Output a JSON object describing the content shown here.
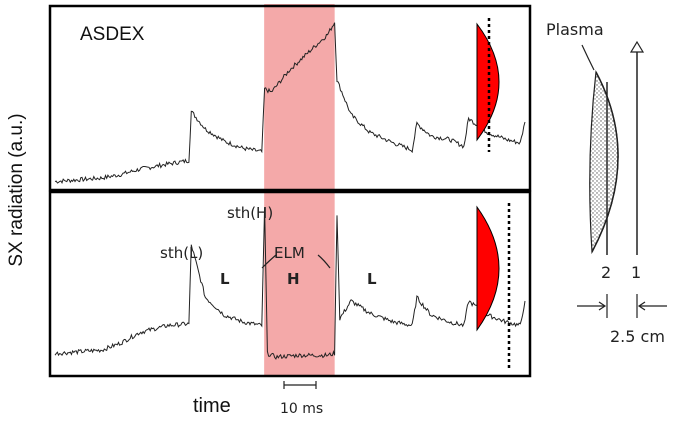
{
  "chart_data": {
    "type": "line",
    "machine_label": "ASDEX",
    "ylabel": "SX radiation (a.u.)",
    "xlabel": "time",
    "scale_bar_label": "10 ms",
    "h_phase_color": "#f08c8c",
    "plasma_marker_color": "#ff0000",
    "x_range": [
      0,
      100
    ],
    "y_range": [
      0,
      1
    ],
    "h_phase_window": [
      44.5,
      59.5
    ],
    "panels": [
      {
        "name": "upper-trace",
        "baseline": 0.02,
        "points": [
          [
            0,
            0.02
          ],
          [
            10,
            0.04
          ],
          [
            14,
            0.06
          ],
          [
            18,
            0.09
          ],
          [
            24,
            0.12
          ],
          [
            28.5,
            0.14
          ],
          [
            29,
            0.42
          ],
          [
            32,
            0.32
          ],
          [
            36,
            0.25
          ],
          [
            40,
            0.21
          ],
          [
            44,
            0.19
          ],
          [
            44.6,
            0.55
          ],
          [
            46,
            0.53
          ],
          [
            50,
            0.66
          ],
          [
            54,
            0.76
          ],
          [
            58,
            0.86
          ],
          [
            59.5,
            0.93
          ],
          [
            60,
            0.6
          ],
          [
            63,
            0.4
          ],
          [
            67,
            0.3
          ],
          [
            72,
            0.24
          ],
          [
            76,
            0.2
          ],
          [
            77,
            0.35
          ],
          [
            80,
            0.28
          ],
          [
            84,
            0.26
          ],
          [
            87,
            0.22
          ],
          [
            88,
            0.38
          ],
          [
            92,
            0.3
          ],
          [
            96,
            0.26
          ],
          [
            99,
            0.24
          ],
          [
            100,
            0.36
          ]
        ]
      },
      {
        "name": "lower-trace",
        "baseline": 0.1,
        "points": [
          [
            0,
            0.1
          ],
          [
            10,
            0.12
          ],
          [
            14,
            0.16
          ],
          [
            18,
            0.22
          ],
          [
            24,
            0.26
          ],
          [
            28.5,
            0.27
          ],
          [
            29,
            0.72
          ],
          [
            32,
            0.42
          ],
          [
            36,
            0.32
          ],
          [
            40,
            0.28
          ],
          [
            44,
            0.26
          ],
          [
            44.6,
            0.93
          ],
          [
            45.2,
            0.1
          ],
          [
            47,
            0.08
          ],
          [
            52,
            0.09
          ],
          [
            58,
            0.09
          ],
          [
            59.5,
            0.1
          ],
          [
            60,
            0.9
          ],
          [
            60.6,
            0.3
          ],
          [
            63,
            0.4
          ],
          [
            67,
            0.33
          ],
          [
            72,
            0.28
          ],
          [
            76,
            0.26
          ],
          [
            77,
            0.42
          ],
          [
            80,
            0.32
          ],
          [
            84,
            0.28
          ],
          [
            87,
            0.26
          ],
          [
            88,
            0.4
          ],
          [
            92,
            0.32
          ],
          [
            96,
            0.28
          ],
          [
            99,
            0.26
          ],
          [
            100,
            0.4
          ]
        ]
      }
    ],
    "annotations": {
      "sth_l": "sth(L)",
      "sth_h": "sth(H)",
      "elm": "ELM",
      "phase_l_1": "L",
      "phase_h": "H",
      "phase_l_2": "L"
    },
    "inset": {
      "plasma_label": "Plasma",
      "chord_2_label": "2",
      "chord_1_label": "1",
      "distance_label": "2.5 cm"
    }
  }
}
